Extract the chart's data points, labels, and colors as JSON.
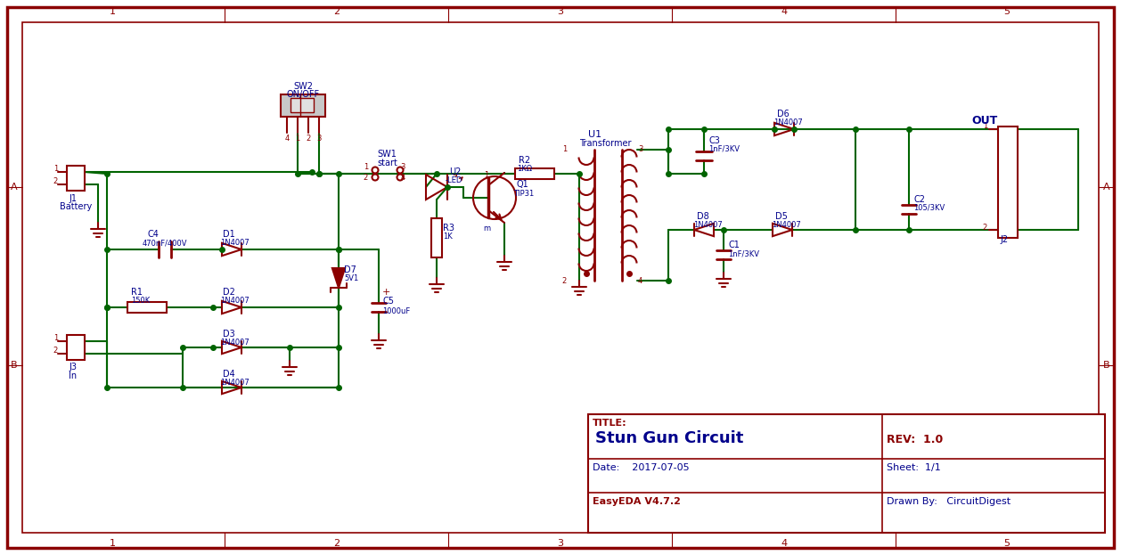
{
  "bg_color": "#ffffff",
  "border_color": "#8b0000",
  "wire_color": "#006400",
  "component_color": "#8b0000",
  "label_color": "#00008b",
  "title_color": "#8b0000",
  "fig_width": 12.58,
  "fig_height": 6.23,
  "title_text": "Stun Gun Circuit",
  "rev_text": "REV:  1.0",
  "date_text": "Date:    2017-07-05",
  "sheet_text": "Sheet:  1/1",
  "eda_text": "EasyEDA V4.7.2",
  "drawn_text": "Drawn By:   CircuitDigest",
  "title_label": "TITLE:"
}
